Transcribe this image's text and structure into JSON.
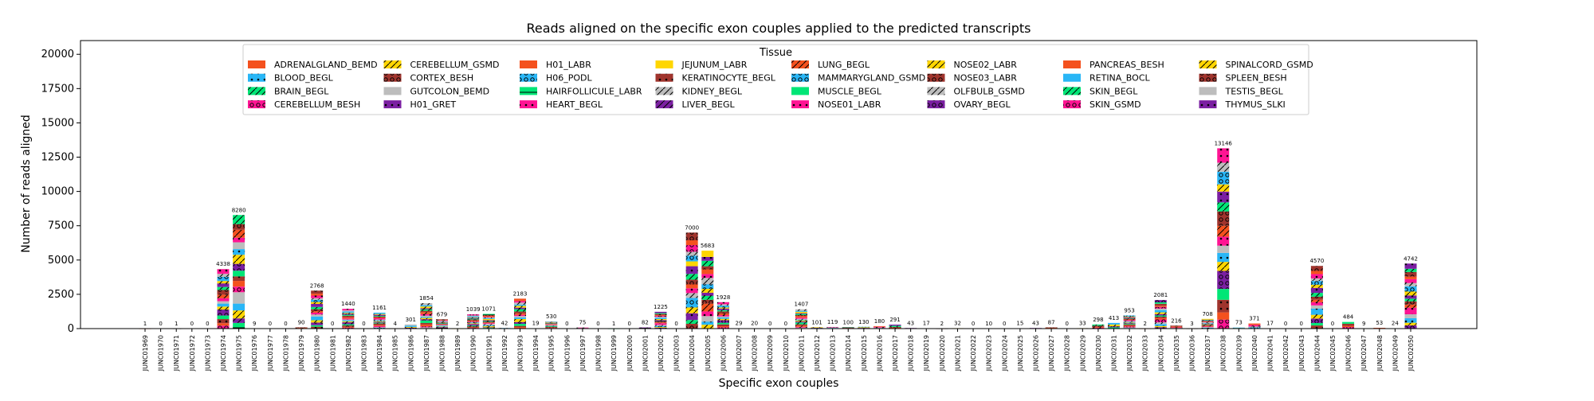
{
  "chart_data": {
    "type": "bar",
    "stacked": true,
    "title": "Reads aligned on the specific exon couples applied to the predicted transcripts",
    "xlabel": "Specific exon couples",
    "ylabel": "Number of reads aligned",
    "ylim": [
      0,
      21000
    ],
    "yticks": [
      0,
      2500,
      5000,
      7500,
      10000,
      12500,
      15000,
      17500,
      20000
    ],
    "legend": {
      "title": "Tissue",
      "placement": "upper center",
      "entries": [
        {
          "name": "ADRENALGLAND_BEMD",
          "color": "#f4511e",
          "pattern": "solid"
        },
        {
          "name": "BLOOD_BEGL",
          "color": "#29b6f6",
          "pattern": "dot"
        },
        {
          "name": "BRAIN_BEGL",
          "color": "#00e676",
          "pattern": "slash"
        },
        {
          "name": "CEREBELLUM_BESH",
          "color": "#ff1493",
          "pattern": "circle"
        },
        {
          "name": "CEREBELLUM_GSMD",
          "color": "#ffd600",
          "pattern": "slash"
        },
        {
          "name": "CORTEX_BESH",
          "color": "#a0342d",
          "pattern": "circle"
        },
        {
          "name": "GUTCOLON_BEMD",
          "color": "#bdbdbd",
          "pattern": "solid"
        },
        {
          "name": "H01_GRET",
          "color": "#7b1fa2",
          "pattern": "dot"
        },
        {
          "name": "H01_LABR",
          "color": "#f4511e",
          "pattern": "solid"
        },
        {
          "name": "H06_PODL",
          "color": "#29b6f6",
          "pattern": "circle"
        },
        {
          "name": "HAIRFOLLICULE_LABR",
          "color": "#00e676",
          "pattern": "hline"
        },
        {
          "name": "HEART_BEGL",
          "color": "#ff1493",
          "pattern": "dot"
        },
        {
          "name": "JEJUNUM_LABR",
          "color": "#ffd600",
          "pattern": "solid"
        },
        {
          "name": "KERATINOCYTE_BEGL",
          "color": "#a0342d",
          "pattern": "dot"
        },
        {
          "name": "KIDNEY_BEGL",
          "color": "#bdbdbd",
          "pattern": "slash"
        },
        {
          "name": "LIVER_BEGL",
          "color": "#7b1fa2",
          "pattern": "slash"
        },
        {
          "name": "LUNG_BEGL",
          "color": "#f4511e",
          "pattern": "slash"
        },
        {
          "name": "MAMMARYGLAND_GSMD",
          "color": "#29b6f6",
          "pattern": "circle"
        },
        {
          "name": "MUSCLE_BEGL",
          "color": "#00e676",
          "pattern": "solid"
        },
        {
          "name": "NOSE01_LABR",
          "color": "#ff1493",
          "pattern": "dot"
        },
        {
          "name": "NOSE02_LABR",
          "color": "#ffd600",
          "pattern": "slash"
        },
        {
          "name": "NOSE03_LABR",
          "color": "#a0342d",
          "pattern": "circle"
        },
        {
          "name": "OLFBULB_GSMD",
          "color": "#bdbdbd",
          "pattern": "slash"
        },
        {
          "name": "OVARY_BEGL",
          "color": "#7b1fa2",
          "pattern": "circle"
        },
        {
          "name": "PANCREAS_BESH",
          "color": "#f4511e",
          "pattern": "solid"
        },
        {
          "name": "RETINA_BOCL",
          "color": "#29b6f6",
          "pattern": "solid"
        },
        {
          "name": "SKIN_BEGL",
          "color": "#00e676",
          "pattern": "slash"
        },
        {
          "name": "SKIN_GSMD",
          "color": "#ff1493",
          "pattern": "circle"
        },
        {
          "name": "SPINALCORD_GSMD",
          "color": "#ffd600",
          "pattern": "slash"
        },
        {
          "name": "SPLEEN_BESH",
          "color": "#a0342d",
          "pattern": "circle"
        },
        {
          "name": "TESTIS_BEGL",
          "color": "#bdbdbd",
          "pattern": "solid"
        },
        {
          "name": "THYMUS_SLKI",
          "color": "#7b1fa2",
          "pattern": "dot"
        }
      ]
    },
    "categories": [
      "JUNC01969",
      "JUNC01970",
      "JUNC01971",
      "JUNC01972",
      "JUNC01973",
      "JUNC01974",
      "JUNC01975",
      "JUNC01976",
      "JUNC01977",
      "JUNC01978",
      "JUNC01979",
      "JUNC01980",
      "JUNC01981",
      "JUNC01982",
      "JUNC01983",
      "JUNC01984",
      "JUNC01985",
      "JUNC01986",
      "JUNC01987",
      "JUNC01988",
      "JUNC01989",
      "JUNC01990",
      "JUNC01991",
      "JUNC01992",
      "JUNC01993",
      "JUNC01994",
      "JUNC01995",
      "JUNC01996",
      "JUNC01997",
      "JUNC01998",
      "JUNC01999",
      "JUNC02000",
      "JUNC02001",
      "JUNC02002",
      "JUNC02003",
      "JUNC02004",
      "JUNC02005",
      "JUNC02006",
      "JUNC02007",
      "JUNC02008",
      "JUNC02009",
      "JUNC02010",
      "JUNC02011",
      "JUNC02012",
      "JUNC02013",
      "JUNC02014",
      "JUNC02015",
      "JUNC02016",
      "JUNC02017",
      "JUNC02018",
      "JUNC02019",
      "JUNC02020",
      "JUNC02021",
      "JUNC02022",
      "JUNC02023",
      "JUNC02024",
      "JUNC02025",
      "JUNC02026",
      "JUNC02027",
      "JUNC02028",
      "JUNC02029",
      "JUNC02030",
      "JUNC02031",
      "JUNC02032",
      "JUNC02033",
      "JUNC02034",
      "JUNC02035",
      "JUNC02036",
      "JUNC02037",
      "JUNC02038",
      "JUNC02039",
      "JUNC02040",
      "JUNC02041",
      "JUNC02042",
      "JUNC02043",
      "JUNC02044",
      "JUNC02045",
      "JUNC02046",
      "JUNC02047",
      "JUNC02048",
      "JUNC02049",
      "JUNC02050"
    ],
    "totals": [
      1,
      0,
      1,
      0,
      0,
      4338,
      8280,
      9,
      0,
      0,
      90,
      2768,
      0,
      1440,
      0,
      1161,
      4,
      301,
      1854,
      679,
      2,
      1039,
      1071,
      42,
      2183,
      19,
      530,
      0,
      75,
      0,
      1,
      0,
      82,
      1225,
      0,
      7000,
      5683,
      1928,
      29,
      20,
      0,
      0,
      1407,
      101,
      119,
      100,
      130,
      180,
      291,
      43,
      17,
      2,
      32,
      0,
      10,
      0,
      15,
      43,
      87,
      0,
      33,
      298,
      413,
      953,
      2,
      2081,
      216,
      3,
      708,
      13146,
      73,
      371,
      17,
      0,
      0,
      4570,
      0,
      484,
      9,
      53,
      24,
      4742
    ]
  }
}
